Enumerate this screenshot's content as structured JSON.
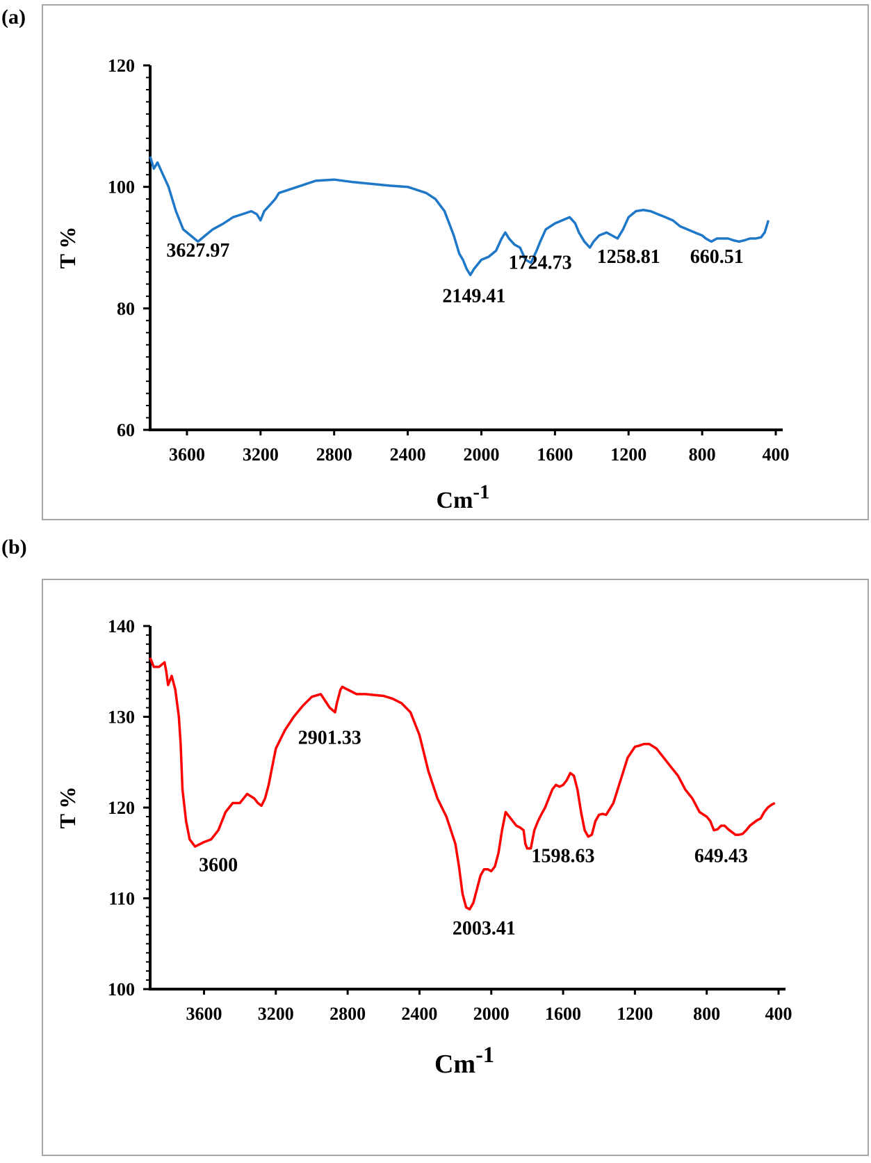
{
  "chart_data": [
    {
      "panel_label": "(a)",
      "type": "line",
      "xlabel": "Cm",
      "xlabel_sup": "-1",
      "ylabel": "T %",
      "xlim": [
        3800,
        400
      ],
      "ylim": [
        60,
        120
      ],
      "xticks": [
        3600,
        3200,
        2800,
        2400,
        2000,
        1600,
        1200,
        800,
        400
      ],
      "yticks": [
        60,
        80,
        100,
        120
      ],
      "color": "#1f77c8",
      "series": [
        {
          "x": [
            3800,
            3780,
            3760,
            3730,
            3700,
            3660,
            3620,
            3580,
            3540,
            3500,
            3460,
            3400,
            3350,
            3300,
            3250,
            3220,
            3200,
            3180,
            3150,
            3120,
            3100,
            3000,
            2900,
            2800,
            2700,
            2600,
            2500,
            2400,
            2300,
            2250,
            2200,
            2150,
            2120,
            2100,
            2080,
            2060,
            2040,
            2000,
            1960,
            1920,
            1890,
            1870,
            1850,
            1820,
            1790,
            1760,
            1730,
            1700,
            1680,
            1650,
            1600,
            1560,
            1520,
            1490,
            1470,
            1440,
            1410,
            1390,
            1360,
            1320,
            1290,
            1260,
            1230,
            1200,
            1160,
            1120,
            1080,
            1040,
            1000,
            960,
            920,
            880,
            840,
            800,
            780,
            750,
            720,
            690,
            660,
            630,
            600,
            570,
            540,
            510,
            480,
            460,
            440
          ],
          "y": [
            105,
            103,
            104,
            102,
            100,
            96,
            93,
            92,
            91,
            92,
            93,
            94,
            95,
            95.5,
            96,
            95.5,
            94.5,
            96,
            97,
            98,
            99,
            100,
            101,
            101.2,
            100.8,
            100.5,
            100.2,
            100,
            99,
            98,
            96,
            92,
            89,
            88,
            86.5,
            85.5,
            86.5,
            88,
            88.5,
            89.5,
            91.5,
            92.5,
            91.5,
            90.5,
            90,
            88,
            87.5,
            89.5,
            91,
            93,
            94,
            94.5,
            95,
            94,
            92.5,
            91,
            90,
            91,
            92,
            92.5,
            92,
            91.5,
            93,
            95,
            96,
            96.2,
            96,
            95.5,
            95,
            94.5,
            93.5,
            93,
            92.5,
            92,
            91.5,
            91,
            91.5,
            91.5,
            91.5,
            91.2,
            91,
            91.2,
            91.5,
            91.5,
            91.7,
            92.5,
            94.5
          ]
        }
      ],
      "annotations": [
        {
          "text": "3627.97",
          "x": 3540,
          "y": 88.5
        },
        {
          "text": "2149.41",
          "x": 2040,
          "y": 81
        },
        {
          "text": "1724.73",
          "x": 1680,
          "y": 86.5
        },
        {
          "text": "1258.81",
          "x": 1200,
          "y": 87.5
        },
        {
          "text": "660.51",
          "x": 720,
          "y": 87.5
        }
      ]
    },
    {
      "panel_label": "(b)",
      "type": "line",
      "xlabel": "Cm",
      "xlabel_sup": "-1",
      "ylabel": "T %",
      "xlim": [
        3900,
        400
      ],
      "ylim": [
        100,
        140
      ],
      "xticks": [
        3600,
        3200,
        2800,
        2400,
        2000,
        1600,
        1200,
        800,
        400
      ],
      "yticks": [
        100,
        110,
        120,
        130,
        140
      ],
      "color": "#ff0000",
      "series": [
        {
          "x": [
            3900,
            3880,
            3850,
            3820,
            3810,
            3800,
            3790,
            3780,
            3760,
            3740,
            3730,
            3720,
            3700,
            3680,
            3650,
            3600,
            3560,
            3520,
            3480,
            3440,
            3400,
            3360,
            3320,
            3300,
            3280,
            3260,
            3240,
            3220,
            3200,
            3150,
            3100,
            3050,
            3000,
            2950,
            2900,
            2870,
            2860,
            2840,
            2830,
            2800,
            2780,
            2750,
            2700,
            2650,
            2600,
            2550,
            2500,
            2450,
            2400,
            2350,
            2300,
            2250,
            2200,
            2180,
            2160,
            2140,
            2120,
            2100,
            2080,
            2060,
            2040,
            2020,
            2000,
            1980,
            1960,
            1940,
            1920,
            1900,
            1880,
            1860,
            1840,
            1820,
            1810,
            1800,
            1780,
            1760,
            1740,
            1720,
            1700,
            1680,
            1660,
            1640,
            1620,
            1600,
            1580,
            1560,
            1540,
            1520,
            1500,
            1480,
            1460,
            1440,
            1420,
            1400,
            1380,
            1360,
            1320,
            1280,
            1240,
            1200,
            1180,
            1150,
            1120,
            1080,
            1040,
            1000,
            960,
            920,
            880,
            840,
            800,
            780,
            760,
            740,
            720,
            700,
            680,
            660,
            640,
            620,
            600,
            580,
            560,
            540,
            520,
            500,
            480,
            460,
            440,
            420
          ],
          "y": [
            136.5,
            135.5,
            135.5,
            136,
            135,
            133.5,
            134,
            134.5,
            133,
            130,
            127,
            122,
            118.5,
            116.5,
            115.7,
            116.2,
            116.5,
            117.5,
            119.5,
            120.5,
            120.5,
            121.5,
            121,
            120.5,
            120.2,
            121,
            122.5,
            124.5,
            126.5,
            128.5,
            130,
            131.2,
            132.2,
            132.5,
            131,
            130.5,
            131.5,
            133,
            133.3,
            133,
            132.8,
            132.5,
            132.5,
            132.4,
            132.3,
            132,
            131.5,
            130.5,
            128,
            124,
            121,
            119,
            116,
            113.5,
            110.5,
            109,
            108.8,
            109.5,
            111,
            112.5,
            113.2,
            113.2,
            113,
            113.5,
            115,
            117.5,
            119.5,
            119,
            118.5,
            118,
            117.8,
            117.5,
            116,
            115.5,
            115.5,
            117.5,
            118.5,
            119.3,
            120,
            121,
            122,
            122.5,
            122.3,
            122.5,
            123,
            123.8,
            123.5,
            122,
            119.5,
            117.5,
            116.8,
            117,
            118.5,
            119.2,
            119.3,
            119.2,
            120.5,
            123,
            125.5,
            126.7,
            126.8,
            127,
            127,
            126.5,
            125.5,
            124.5,
            123.5,
            122,
            121,
            119.5,
            119,
            118.5,
            117.5,
            117.6,
            118,
            118,
            117.6,
            117.3,
            117,
            117,
            117.1,
            117.5,
            118,
            118.3,
            118.6,
            118.8,
            119.5,
            120,
            120.3,
            120.5
          ]
        }
      ],
      "annotations": [
        {
          "text": "3600",
          "x": 3520,
          "y": 113
        },
        {
          "text": "2901.33",
          "x": 2900,
          "y": 127
        },
        {
          "text": "2003.41",
          "x": 2040,
          "y": 106
        },
        {
          "text": "1598.63",
          "x": 1600,
          "y": 114
        },
        {
          "text": "649.43",
          "x": 720,
          "y": 114
        }
      ]
    }
  ]
}
